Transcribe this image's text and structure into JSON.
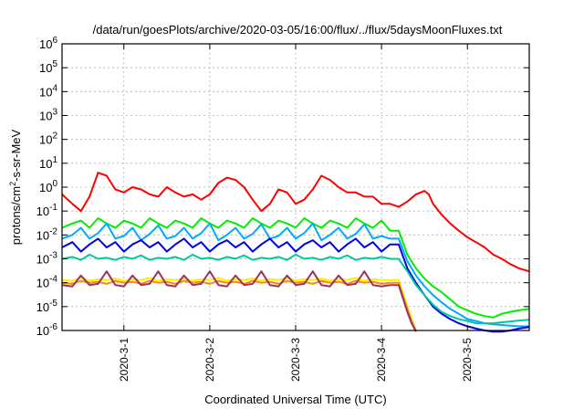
{
  "chart_data": {
    "type": "line",
    "title": "/data/run/goesPlots/archive/2020-03-05/16:00/flux/../flux/5daysMoonFluxes.txt",
    "xlabel": "Coordinated Universal Time (UTC)",
    "ylabel_base": "protons/cm",
    "ylabel_sup": "2",
    "ylabel_rest": "-s-sr-MeV",
    "y_scale": "log",
    "ylim": [
      1e-06,
      1000000.0
    ],
    "y_ticks": [
      {
        "value": 1e-06,
        "base": "10",
        "exp": "-6"
      },
      {
        "value": 1e-05,
        "base": "10",
        "exp": "-5"
      },
      {
        "value": 0.0001,
        "base": "10",
        "exp": "-4"
      },
      {
        "value": 0.001,
        "base": "10",
        "exp": "-3"
      },
      {
        "value": 0.01,
        "base": "10",
        "exp": "-2"
      },
      {
        "value": 0.1,
        "base": "10",
        "exp": "-1"
      },
      {
        "value": 1.0,
        "base": "10",
        "exp": "0"
      },
      {
        "value": 10.0,
        "base": "10",
        "exp": "1"
      },
      {
        "value": 100.0,
        "base": "10",
        "exp": "2"
      },
      {
        "value": 1000.0,
        "base": "10",
        "exp": "3"
      },
      {
        "value": 10000.0,
        "base": "10",
        "exp": "4"
      },
      {
        "value": 100000.0,
        "base": "10",
        "exp": "5"
      },
      {
        "value": 1000000.0,
        "base": "10",
        "exp": "6"
      }
    ],
    "xlim_days": [
      -0.72,
      4.72
    ],
    "x_ticks": [
      {
        "day": 0,
        "label": "2020-3-1"
      },
      {
        "day": 1,
        "label": "2020-3-2"
      },
      {
        "day": 2,
        "label": "2020-3-3"
      },
      {
        "day": 3,
        "label": "2020-3-4"
      },
      {
        "day": 4,
        "label": "2020-3-5"
      }
    ],
    "grid": true,
    "legend": "none",
    "series": [
      {
        "color": "#ff0000",
        "x": [
          -0.72,
          -0.6,
          -0.5,
          -0.4,
          -0.3,
          -0.2,
          -0.1,
          0.0,
          0.1,
          0.2,
          0.3,
          0.4,
          0.5,
          0.6,
          0.7,
          0.8,
          0.9,
          1.0,
          1.1,
          1.2,
          1.3,
          1.4,
          1.5,
          1.6,
          1.7,
          1.8,
          1.9,
          2.0,
          2.1,
          2.2,
          2.3,
          2.4,
          2.5,
          2.6,
          2.7,
          2.8,
          2.9,
          3.0,
          3.1,
          3.2,
          3.3,
          3.4,
          3.5,
          3.55,
          3.6,
          3.7,
          3.8,
          3.9,
          4.0,
          4.1,
          4.2,
          4.3,
          4.4,
          4.5,
          4.6,
          4.72
        ],
        "y": [
          0.5,
          0.2,
          0.1,
          0.4,
          4,
          3,
          0.8,
          0.6,
          1,
          0.8,
          0.5,
          0.4,
          1,
          0.6,
          0.4,
          0.5,
          0.3,
          0.5,
          1.5,
          2.5,
          2,
          1,
          0.3,
          0.1,
          0.2,
          0.8,
          0.6,
          0.2,
          0.3,
          0.8,
          3,
          2,
          1,
          0.6,
          0.6,
          0.4,
          0.4,
          0.2,
          0.2,
          0.15,
          0.25,
          0.5,
          0.7,
          0.5,
          0.2,
          0.07,
          0.03,
          0.015,
          0.008,
          0.005,
          0.003,
          0.0015,
          0.001,
          0.0006,
          0.0004,
          0.0003
        ]
      },
      {
        "color": "#00ee00",
        "x": [
          -0.72,
          -0.6,
          -0.5,
          -0.4,
          -0.3,
          -0.2,
          -0.1,
          0.0,
          0.1,
          0.2,
          0.3,
          0.4,
          0.5,
          0.6,
          0.7,
          0.8,
          0.9,
          1.0,
          1.1,
          1.2,
          1.3,
          1.4,
          1.5,
          1.6,
          1.7,
          1.8,
          1.9,
          2.0,
          2.1,
          2.2,
          2.3,
          2.4,
          2.5,
          2.6,
          2.7,
          2.8,
          2.9,
          3.0,
          3.1,
          3.2,
          3.3,
          3.4,
          3.5,
          3.6,
          3.7,
          3.8,
          3.9,
          4.0,
          4.1,
          4.2,
          4.3,
          4.4,
          4.5,
          4.6,
          4.72
        ],
        "y": [
          0.02,
          0.03,
          0.04,
          0.02,
          0.05,
          0.03,
          0.02,
          0.04,
          0.03,
          0.02,
          0.05,
          0.03,
          0.02,
          0.04,
          0.03,
          0.02,
          0.05,
          0.03,
          0.02,
          0.04,
          0.03,
          0.02,
          0.05,
          0.03,
          0.02,
          0.04,
          0.03,
          0.02,
          0.05,
          0.03,
          0.02,
          0.04,
          0.03,
          0.02,
          0.05,
          0.03,
          0.02,
          0.04,
          0.015,
          0.015,
          0.0015,
          0.0004,
          0.00015,
          7e-05,
          4e-05,
          2e-05,
          1e-05,
          7e-06,
          5e-06,
          4e-06,
          3.5e-06,
          5e-06,
          6e-06,
          7e-06,
          8e-06
        ]
      },
      {
        "color": "#00aaff",
        "x": [
          -0.72,
          -0.6,
          -0.5,
          -0.4,
          -0.3,
          -0.2,
          -0.1,
          0.0,
          0.1,
          0.2,
          0.3,
          0.4,
          0.5,
          0.6,
          0.7,
          0.8,
          0.9,
          1.0,
          1.1,
          1.2,
          1.3,
          1.4,
          1.5,
          1.6,
          1.7,
          1.8,
          1.9,
          2.0,
          2.1,
          2.2,
          2.3,
          2.4,
          2.5,
          2.6,
          2.7,
          2.8,
          2.9,
          3.0,
          3.1,
          3.2,
          3.3,
          3.4,
          3.5,
          3.6,
          3.7,
          3.8,
          3.9,
          4.0,
          4.1,
          4.2,
          4.3,
          4.4,
          4.5,
          4.6,
          4.72
        ],
        "y": [
          0.007,
          0.01,
          0.02,
          0.007,
          0.012,
          0.03,
          0.007,
          0.009,
          0.02,
          0.006,
          0.011,
          0.025,
          0.007,
          0.009,
          0.02,
          0.007,
          0.012,
          0.03,
          0.006,
          0.01,
          0.02,
          0.007,
          0.011,
          0.028,
          0.007,
          0.009,
          0.02,
          0.007,
          0.012,
          0.03,
          0.006,
          0.01,
          0.02,
          0.007,
          0.011,
          0.028,
          0.007,
          0.009,
          0.007,
          0.007,
          0.0008,
          0.0002,
          7e-05,
          3e-05,
          1.5e-05,
          8e-06,
          5e-06,
          3e-06,
          2.5e-06,
          2e-06,
          1.8e-06,
          1.7e-06,
          1.6e-06,
          1.5e-06,
          1.5e-06
        ]
      },
      {
        "color": "#0000ee",
        "x": [
          -0.72,
          -0.6,
          -0.5,
          -0.4,
          -0.3,
          -0.2,
          -0.1,
          0.0,
          0.1,
          0.2,
          0.3,
          0.4,
          0.5,
          0.6,
          0.7,
          0.8,
          0.9,
          1.0,
          1.1,
          1.2,
          1.3,
          1.4,
          1.5,
          1.6,
          1.7,
          1.8,
          1.9,
          2.0,
          2.1,
          2.2,
          2.3,
          2.4,
          2.5,
          2.6,
          2.7,
          2.8,
          2.9,
          3.0,
          3.1,
          3.2,
          3.3,
          3.4,
          3.5,
          3.6,
          3.7,
          3.8,
          3.9,
          4.0,
          4.1,
          4.2,
          4.3,
          4.4,
          4.5,
          4.6,
          4.72
        ],
        "y": [
          0.003,
          0.005,
          0.002,
          0.004,
          0.007,
          0.003,
          0.005,
          0.002,
          0.004,
          0.006,
          0.003,
          0.005,
          0.002,
          0.004,
          0.007,
          0.003,
          0.005,
          0.002,
          0.004,
          0.006,
          0.003,
          0.005,
          0.002,
          0.004,
          0.007,
          0.003,
          0.005,
          0.002,
          0.004,
          0.006,
          0.003,
          0.005,
          0.002,
          0.004,
          0.007,
          0.003,
          0.005,
          0.002,
          0.004,
          0.004,
          0.0004,
          0.0001,
          3e-05,
          1e-05,
          5e-06,
          3e-06,
          2e-06,
          1.5e-06,
          1.2e-06,
          1e-06,
          9e-07,
          9e-07,
          1e-06,
          1.2e-06,
          1.4e-06
        ]
      },
      {
        "color": "#00c8a0",
        "x": [
          -0.72,
          -0.6,
          -0.5,
          -0.4,
          -0.3,
          -0.2,
          -0.1,
          0.0,
          0.1,
          0.2,
          0.3,
          0.4,
          0.5,
          0.6,
          0.7,
          0.8,
          0.9,
          1.0,
          1.1,
          1.2,
          1.3,
          1.4,
          1.5,
          1.6,
          1.7,
          1.8,
          1.9,
          2.0,
          2.1,
          2.2,
          2.3,
          2.4,
          2.5,
          2.6,
          2.7,
          2.8,
          2.9,
          3.0,
          3.1,
          3.2,
          3.3,
          3.4,
          3.5,
          3.6,
          3.7,
          3.8,
          3.9,
          4.0,
          4.1,
          4.2,
          4.3,
          4.4,
          4.5,
          4.6,
          4.72
        ],
        "y": [
          0.001,
          0.0012,
          0.0009,
          0.0015,
          0.001,
          0.0011,
          0.0009,
          0.0012,
          0.001,
          0.0014,
          0.0009,
          0.0011,
          0.001,
          0.0012,
          0.0009,
          0.0015,
          0.001,
          0.0011,
          0.0009,
          0.0012,
          0.001,
          0.0014,
          0.0009,
          0.0011,
          0.001,
          0.0012,
          0.0009,
          0.0015,
          0.001,
          0.0011,
          0.0009,
          0.0012,
          0.001,
          0.0014,
          0.0009,
          0.0011,
          0.001,
          0.0012,
          0.001,
          0.001,
          0.0003,
          8e-05,
          3e-05,
          1.2e-05,
          6e-06,
          4e-06,
          3e-06,
          2.5e-06,
          2e-06,
          2e-06,
          2e-06,
          2.2e-06,
          2.4e-06,
          2.6e-06,
          2.8e-06
        ]
      },
      {
        "color": "#ffee00",
        "x": [
          -0.72,
          -0.6,
          -0.5,
          -0.4,
          -0.3,
          -0.2,
          -0.1,
          0.0,
          0.1,
          0.2,
          0.3,
          0.4,
          0.5,
          0.6,
          0.7,
          0.8,
          0.9,
          1.0,
          1.1,
          1.2,
          1.3,
          1.4,
          1.5,
          1.6,
          1.7,
          1.8,
          1.9,
          2.0,
          2.1,
          2.2,
          2.3,
          2.4,
          2.5,
          2.6,
          2.7,
          2.8,
          2.9,
          3.0,
          3.1,
          3.2,
          3.3,
          3.35,
          3.4
        ],
        "y": [
          0.00013,
          0.00012,
          0.00016,
          0.00012,
          0.00014,
          0.00013,
          0.00015,
          0.00012,
          0.00014,
          0.00013,
          0.00016,
          0.00012,
          0.00014,
          0.00013,
          0.00015,
          0.00012,
          0.00014,
          0.00013,
          0.00016,
          0.00012,
          0.00014,
          0.00013,
          0.00015,
          0.00012,
          0.00014,
          0.00013,
          0.00016,
          0.00012,
          0.00014,
          0.00013,
          0.00015,
          0.00012,
          0.00014,
          0.00013,
          0.00016,
          0.00012,
          0.00014,
          0.00013,
          0.00013,
          0.00013,
          1e-05,
          3e-06,
          1e-06
        ]
      },
      {
        "color": "#ff8c00",
        "x": [
          -0.72,
          -0.6,
          -0.5,
          -0.4,
          -0.3,
          -0.2,
          -0.1,
          0.0,
          0.1,
          0.2,
          0.3,
          0.4,
          0.5,
          0.6,
          0.7,
          0.8,
          0.9,
          1.0,
          1.1,
          1.2,
          1.3,
          1.4,
          1.5,
          1.6,
          1.7,
          1.8,
          1.9,
          2.0,
          2.1,
          2.2,
          2.3,
          2.4,
          2.5,
          2.6,
          2.7,
          2.8,
          2.9,
          3.0,
          3.1,
          3.2,
          3.3,
          3.35,
          3.4
        ],
        "y": [
          0.0001,
          9e-05,
          0.00012,
          0.0001,
          0.00011,
          9e-05,
          0.00012,
          0.0001,
          0.00011,
          9e-05,
          0.00012,
          0.0001,
          0.00011,
          9e-05,
          0.00012,
          0.0001,
          0.00011,
          9e-05,
          0.00012,
          0.0001,
          0.00011,
          9e-05,
          0.00012,
          0.0001,
          0.00011,
          9e-05,
          0.00012,
          0.0001,
          0.00011,
          9e-05,
          0.00012,
          0.0001,
          0.00011,
          9e-05,
          0.00012,
          0.0001,
          0.00011,
          9e-05,
          0.0001,
          0.0001,
          8e-06,
          2.5e-06,
          1e-06
        ]
      },
      {
        "color": "#993366",
        "x": [
          -0.72,
          -0.6,
          -0.5,
          -0.4,
          -0.3,
          -0.2,
          -0.1,
          0.0,
          0.1,
          0.2,
          0.3,
          0.4,
          0.5,
          0.6,
          0.7,
          0.8,
          0.9,
          1.0,
          1.1,
          1.2,
          1.3,
          1.4,
          1.5,
          1.6,
          1.7,
          1.8,
          1.9,
          2.0,
          2.1,
          2.2,
          2.3,
          2.4,
          2.5,
          2.6,
          2.7,
          2.8,
          2.9,
          3.0,
          3.1,
          3.2,
          3.3,
          3.35,
          3.4
        ],
        "y": [
          8e-05,
          7e-05,
          0.0002,
          8e-05,
          9e-05,
          0.0003,
          8e-05,
          7e-05,
          0.0002,
          8e-05,
          9e-05,
          0.0003,
          8e-05,
          7e-05,
          0.0002,
          8e-05,
          9e-05,
          0.0003,
          8e-05,
          7e-05,
          0.0002,
          8e-05,
          9e-05,
          0.0003,
          8e-05,
          7e-05,
          0.0002,
          8e-05,
          9e-05,
          0.0003,
          8e-05,
          7e-05,
          0.0002,
          8e-05,
          9e-05,
          0.0003,
          8e-05,
          7e-05,
          8e-05,
          8e-05,
          6e-06,
          2e-06,
          9e-07
        ]
      }
    ]
  }
}
